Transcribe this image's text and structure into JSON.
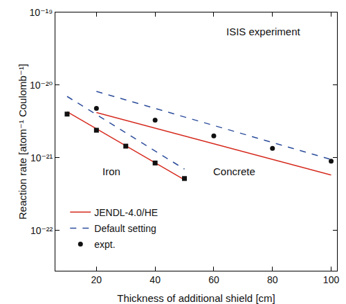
{
  "chart_data": {
    "type": "line",
    "x_label": "Thickness of additional shield [cm]",
    "y_label": "Reaction rate [atom⁻¹ Coulomb⁻¹]",
    "log": "y",
    "grid": false,
    "legend": "lower left",
    "xlim": [
      6,
      102
    ],
    "xticks": [
      20,
      40,
      60,
      80,
      100
    ],
    "ylim": [
      2.8e-23,
      1e-19
    ],
    "yticks": [
      {
        "value": 1e-22,
        "label": "10⁻²²"
      },
      {
        "value": 1e-21,
        "label": "10⁻²¹"
      },
      {
        "value": 1e-20,
        "label": "10⁻²⁰"
      },
      {
        "value": 1e-19,
        "label": "10⁻¹⁹"
      }
    ],
    "annotations": [
      {
        "text": "ISIS experiment",
        "x": 77,
        "y": 5.5e-20
      },
      {
        "text": "Iron",
        "x": 25,
        "y": 6.5e-22
      },
      {
        "text": "Concrete",
        "x": 67,
        "y": 6.5e-22
      }
    ],
    "series": [
      {
        "name": "JENDL-4.0/HE",
        "type": "line",
        "line_style": "solid",
        "color": "#d62a1e",
        "x": [
          10,
          50
        ],
        "values": [
          4.3e-21,
          5e-22
        ]
      },
      {
        "name": "JENDL-4.0/HE",
        "type": "line",
        "line_style": "solid",
        "color": "#d62a1e",
        "x": [
          20,
          100
        ],
        "values": [
          4.2e-21,
          5.8e-22
        ]
      },
      {
        "name": "Default setting",
        "type": "line",
        "line_style": "dash",
        "color": "#2b4c9b",
        "x": [
          10,
          50
        ],
        "values": [
          7e-21,
          7e-22
        ]
      },
      {
        "name": "Default setting",
        "type": "line",
        "line_style": "dash",
        "color": "#2b4c9b",
        "x": [
          20,
          100
        ],
        "values": [
          8.2e-21,
          9.5e-22
        ]
      },
      {
        "name": "expt.",
        "type": "scatter",
        "marker": "circle",
        "color": "#111111",
        "x": [
          20,
          40,
          60,
          80,
          100
        ],
        "values": [
          4.8e-21,
          3.3e-21,
          2e-21,
          1.35e-21,
          9e-22
        ]
      },
      {
        "name": "expt.",
        "type": "scatter",
        "marker": "square",
        "color": "#111111",
        "x": [
          10,
          20,
          30,
          40,
          50
        ],
        "values": [
          4e-21,
          2.4e-21,
          1.45e-21,
          8.5e-22,
          5.2e-22
        ]
      }
    ]
  }
}
